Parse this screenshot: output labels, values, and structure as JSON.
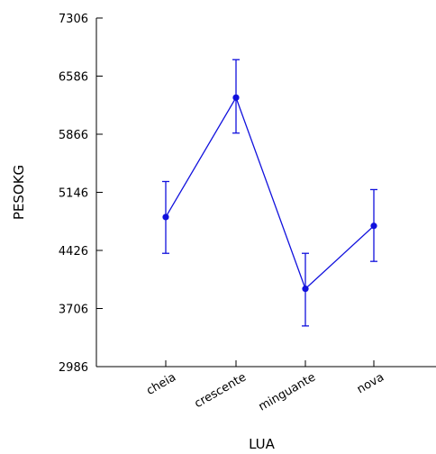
{
  "chart_data": {
    "type": "line",
    "title": "",
    "xlabel": "LUA",
    "ylabel": "PESOKG",
    "categories": [
      "cheia",
      "crescente",
      "minguante",
      "nova"
    ],
    "series": [
      {
        "values": [
          4840,
          6320,
          3950,
          4730
        ],
        "error_low": [
          4390,
          5880,
          3490,
          4290
        ],
        "error_high": [
          5280,
          6790,
          4390,
          5180
        ]
      }
    ],
    "ylim": [
      2986,
      7306
    ],
    "yticks": [
      2986,
      3706,
      4426,
      5146,
      5866,
      6586,
      7306
    ],
    "grid": false,
    "legend": "none",
    "colors": {
      "series": "#1111dd",
      "axis": "#000000"
    }
  }
}
